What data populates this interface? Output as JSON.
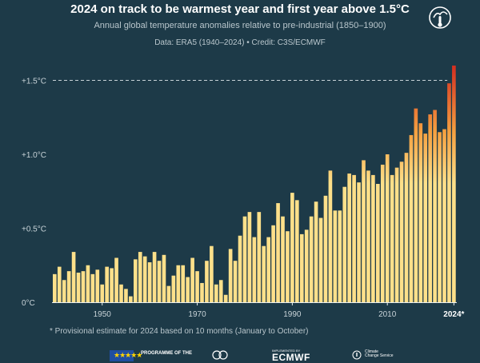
{
  "header": {
    "title": "2024 on track to be warmest year and first year above 1.5°C",
    "subtitle": "Annual global temperature anomalies relative to pre-industrial (1850–1900)",
    "source": "Data: ERA5 (1940–2024)  •  Credit: C3S/ECMWF"
  },
  "footnote": "* Provisional estimate for 2024 based on 10 months (January to October)",
  "footer": {
    "programme": "PROGRAMME OF THE",
    "implemented_by": "IMPLEMENTED BY",
    "ecmwf": "ECMWF",
    "c3s_line1": "Climate",
    "c3s_line2": "Change Service"
  },
  "colors": {
    "background": "#1d3a48",
    "bar_low": "#fde08a",
    "bar_mid": "#f5a040",
    "bar_high": "#d42e20",
    "threshold_line": "#c8d3d8",
    "axis_text": "#c8d3d8"
  },
  "chart_data": {
    "type": "bar",
    "title": "2024 on track to be warmest year and first year above 1.5°C",
    "subtitle": "Annual global temperature anomalies relative to pre-industrial (1850–1900)",
    "x": [
      1940,
      1941,
      1942,
      1943,
      1944,
      1945,
      1946,
      1947,
      1948,
      1949,
      1950,
      1951,
      1952,
      1953,
      1954,
      1955,
      1956,
      1957,
      1958,
      1959,
      1960,
      1961,
      1962,
      1963,
      1964,
      1965,
      1966,
      1967,
      1968,
      1969,
      1970,
      1971,
      1972,
      1973,
      1974,
      1975,
      1976,
      1977,
      1978,
      1979,
      1980,
      1981,
      1982,
      1983,
      1984,
      1985,
      1986,
      1987,
      1988,
      1989,
      1990,
      1991,
      1992,
      1993,
      1994,
      1995,
      1996,
      1997,
      1998,
      1999,
      2000,
      2001,
      2002,
      2003,
      2004,
      2005,
      2006,
      2007,
      2008,
      2009,
      2010,
      2011,
      2012,
      2013,
      2014,
      2015,
      2016,
      2017,
      2018,
      2019,
      2020,
      2021,
      2022,
      2023,
      2024
    ],
    "values": [
      0.19,
      0.24,
      0.15,
      0.21,
      0.34,
      0.2,
      0.21,
      0.25,
      0.19,
      0.22,
      0.12,
      0.24,
      0.23,
      0.3,
      0.12,
      0.09,
      0.04,
      0.29,
      0.34,
      0.31,
      0.27,
      0.34,
      0.28,
      0.32,
      0.11,
      0.18,
      0.25,
      0.25,
      0.17,
      0.3,
      0.21,
      0.13,
      0.28,
      0.38,
      0.12,
      0.15,
      0.05,
      0.36,
      0.28,
      0.45,
      0.58,
      0.61,
      0.44,
      0.61,
      0.38,
      0.44,
      0.52,
      0.67,
      0.58,
      0.48,
      0.74,
      0.69,
      0.46,
      0.49,
      0.58,
      0.68,
      0.57,
      0.72,
      0.89,
      0.62,
      0.62,
      0.78,
      0.87,
      0.86,
      0.81,
      0.96,
      0.89,
      0.86,
      0.8,
      0.93,
      1.0,
      0.86,
      0.91,
      0.95,
      1.01,
      1.13,
      1.31,
      1.21,
      1.14,
      1.27,
      1.3,
      1.15,
      1.17,
      1.48,
      1.6
    ],
    "x_tick_labels": [
      "1950",
      "1970",
      "1990",
      "2010",
      "2024*"
    ],
    "y_tick_labels": [
      "0°C",
      "+0.5°C",
      "+1.0°C",
      "+1.5°C"
    ],
    "y_ticks": [
      0,
      0.5,
      1.0,
      1.5
    ],
    "ylim": [
      0,
      1.6
    ],
    "threshold": 1.5,
    "grid": false,
    "legend": "none"
  }
}
